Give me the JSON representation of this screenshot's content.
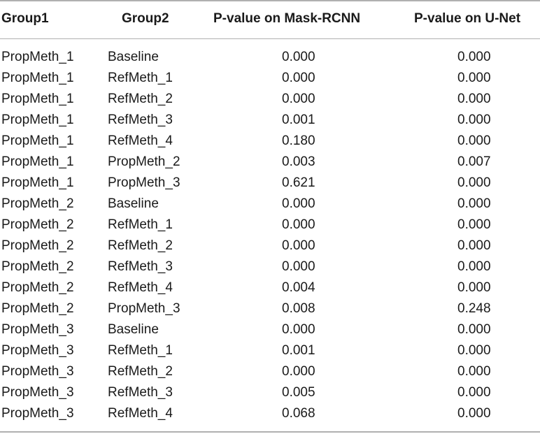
{
  "table": {
    "headers": {
      "group1": "Group1",
      "group2": "Group2",
      "p_mask_rcnn": "P-value on Mask-RCNN",
      "p_unet": "P-value on U-Net"
    },
    "rows": [
      {
        "group1": "PropMeth_1",
        "group2": "Baseline",
        "p_mask_rcnn": "0.000",
        "p_unet": "0.000"
      },
      {
        "group1": "PropMeth_1",
        "group2": "RefMeth_1",
        "p_mask_rcnn": "0.000",
        "p_unet": "0.000"
      },
      {
        "group1": "PropMeth_1",
        "group2": "RefMeth_2",
        "p_mask_rcnn": "0.000",
        "p_unet": "0.000"
      },
      {
        "group1": "PropMeth_1",
        "group2": "RefMeth_3",
        "p_mask_rcnn": "0.001",
        "p_unet": "0.000"
      },
      {
        "group1": "PropMeth_1",
        "group2": "RefMeth_4",
        "p_mask_rcnn": "0.180",
        "p_unet": "0.000"
      },
      {
        "group1": "PropMeth_1",
        "group2": "PropMeth_2",
        "p_mask_rcnn": "0.003",
        "p_unet": "0.007"
      },
      {
        "group1": "PropMeth_1",
        "group2": "PropMeth_3",
        "p_mask_rcnn": "0.621",
        "p_unet": "0.000"
      },
      {
        "group1": "PropMeth_2",
        "group2": "Baseline",
        "p_mask_rcnn": "0.000",
        "p_unet": "0.000"
      },
      {
        "group1": "PropMeth_2",
        "group2": "RefMeth_1",
        "p_mask_rcnn": "0.000",
        "p_unet": "0.000"
      },
      {
        "group1": "PropMeth_2",
        "group2": "RefMeth_2",
        "p_mask_rcnn": "0.000",
        "p_unet": "0.000"
      },
      {
        "group1": "PropMeth_2",
        "group2": "RefMeth_3",
        "p_mask_rcnn": "0.000",
        "p_unet": "0.000"
      },
      {
        "group1": "PropMeth_2",
        "group2": "RefMeth_4",
        "p_mask_rcnn": "0.004",
        "p_unet": "0.000"
      },
      {
        "group1": "PropMeth_2",
        "group2": "PropMeth_3",
        "p_mask_rcnn": "0.008",
        "p_unet": "0.248"
      },
      {
        "group1": "PropMeth_3",
        "group2": "Baseline",
        "p_mask_rcnn": "0.000",
        "p_unet": "0.000"
      },
      {
        "group1": "PropMeth_3",
        "group2": "RefMeth_1",
        "p_mask_rcnn": "0.001",
        "p_unet": "0.000"
      },
      {
        "group1": "PropMeth_3",
        "group2": "RefMeth_2",
        "p_mask_rcnn": "0.000",
        "p_unet": "0.000"
      },
      {
        "group1": "PropMeth_3",
        "group2": "RefMeth_3",
        "p_mask_rcnn": "0.005",
        "p_unet": "0.000"
      },
      {
        "group1": "PropMeth_3",
        "group2": "RefMeth_4",
        "p_mask_rcnn": "0.068",
        "p_unet": "0.000"
      }
    ]
  },
  "colors": {
    "text": "#1a1a1a",
    "rule": "#b0b0b0",
    "background": "#ffffff"
  }
}
